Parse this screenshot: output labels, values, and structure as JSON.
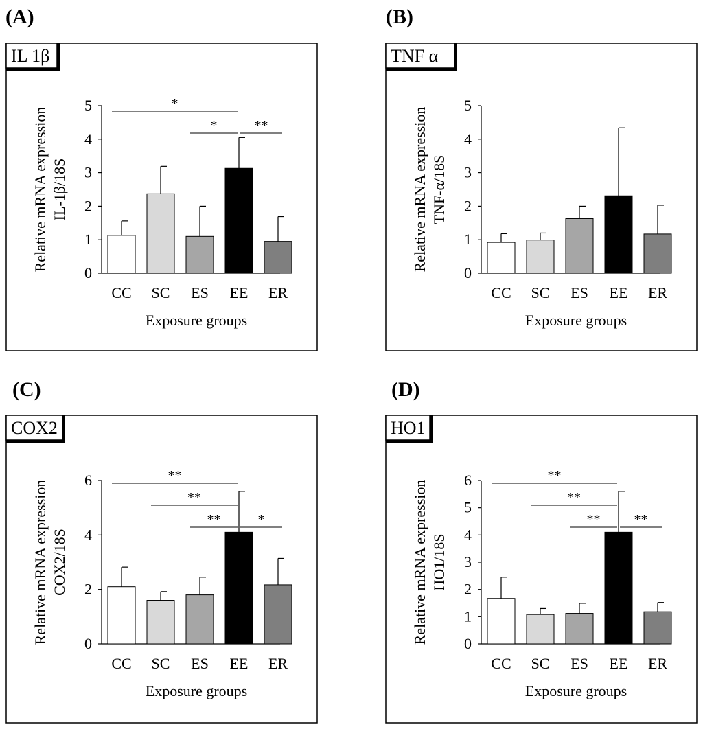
{
  "panels": [
    {
      "letter": "(A)",
      "tag": "IL 1β"
    },
    {
      "letter": "(B)",
      "tag": "TNF α"
    },
    {
      "letter": "(C)",
      "tag": "COX2"
    },
    {
      "letter": "(D)",
      "tag": "HO1"
    }
  ],
  "bar_colors": [
    "#ffffff",
    "#d9d9d9",
    "#a6a6a6",
    "#000000",
    "#7f7f7f"
  ],
  "chart_data": [
    {
      "type": "bar",
      "title": "IL 1β",
      "categories": [
        "CC",
        "SC",
        "ES",
        "EE",
        "ER"
      ],
      "values": [
        1.13,
        2.37,
        1.1,
        3.13,
        0.95
      ],
      "errors": [
        0.43,
        0.82,
        0.9,
        0.92,
        0.74
      ],
      "xlabel": "Exposure groups",
      "ylabel": [
        "Relative mRNA expression",
        "IL-1β/18S"
      ],
      "ylim": [
        0,
        5
      ],
      "yticks": [
        0,
        1,
        2,
        3,
        4,
        5
      ],
      "significance": [
        {
          "from": "CC",
          "to": "EE",
          "label": "*"
        },
        {
          "from": "ES",
          "to": "EE",
          "label": "*"
        },
        {
          "from": "EE",
          "to": "ER",
          "label": "**"
        }
      ]
    },
    {
      "type": "bar",
      "title": "TNF α",
      "categories": [
        "CC",
        "SC",
        "ES",
        "EE",
        "ER"
      ],
      "values": [
        0.92,
        0.99,
        1.63,
        2.31,
        1.17
      ],
      "errors": [
        0.26,
        0.21,
        0.37,
        2.03,
        0.86
      ],
      "xlabel": "Exposure groups",
      "ylabel": [
        "Relative mRNA expression",
        "TNF-α/18S"
      ],
      "ylim": [
        0,
        5
      ],
      "yticks": [
        0,
        1,
        2,
        3,
        4,
        5
      ],
      "significance": []
    },
    {
      "type": "bar",
      "title": "COX2",
      "categories": [
        "CC",
        "SC",
        "ES",
        "EE",
        "ER"
      ],
      "values": [
        2.1,
        1.6,
        1.8,
        4.1,
        2.17
      ],
      "errors": [
        0.72,
        0.32,
        0.65,
        1.5,
        0.97
      ],
      "xlabel": "Exposure groups",
      "ylabel": [
        "Relative mRNA expression",
        "COX2/18S"
      ],
      "ylim": [
        0,
        6
      ],
      "yticks": [
        0,
        2,
        4,
        6
      ],
      "significance": [
        {
          "from": "CC",
          "to": "EE",
          "label": "**"
        },
        {
          "from": "SC",
          "to": "EE",
          "label": "**"
        },
        {
          "from": "ES",
          "to": "EE",
          "label": "**"
        },
        {
          "from": "EE",
          "to": "ER",
          "label": "*"
        }
      ]
    },
    {
      "type": "bar",
      "title": "HO1",
      "categories": [
        "CC",
        "SC",
        "ES",
        "EE",
        "ER"
      ],
      "values": [
        1.67,
        1.08,
        1.12,
        4.1,
        1.18
      ],
      "errors": [
        0.78,
        0.22,
        0.37,
        1.5,
        0.34
      ],
      "xlabel": "Exposure groups",
      "ylabel": [
        "Relative mRNA expression",
        "HO1/18S"
      ],
      "ylim": [
        0,
        6
      ],
      "yticks": [
        0,
        1,
        2,
        3,
        4,
        5,
        6
      ],
      "significance": [
        {
          "from": "CC",
          "to": "EE",
          "label": "**"
        },
        {
          "from": "SC",
          "to": "EE",
          "label": "**"
        },
        {
          "from": "ES",
          "to": "EE",
          "label": "**"
        },
        {
          "from": "EE",
          "to": "ER",
          "label": "**"
        }
      ]
    }
  ]
}
